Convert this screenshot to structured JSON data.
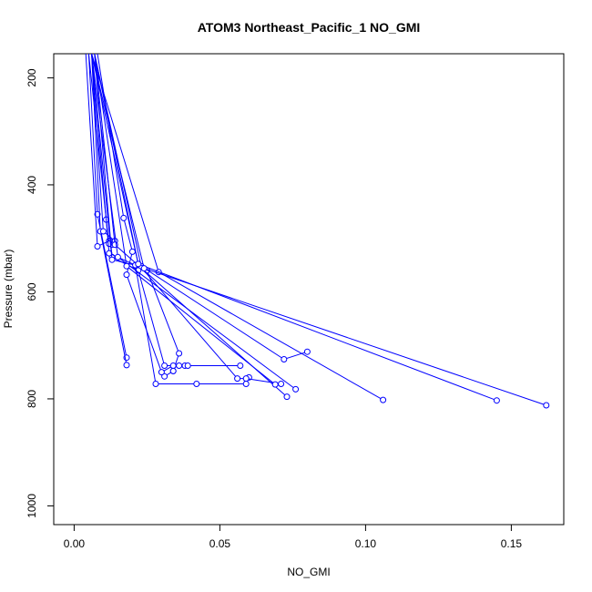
{
  "chart_data": {
    "type": "line",
    "title": "ATOM3 Northeast_Pacific_1 NO_GMI",
    "xlabel": "NO_GMI",
    "ylabel": "Pressure (mbar)",
    "xlim": [
      -0.007,
      0.168
    ],
    "ylim": [
      1035,
      155
    ],
    "y_reversed": true,
    "x_ticks": [
      0.0,
      0.05,
      0.1,
      0.15
    ],
    "x_tick_labels": [
      "0.00",
      "0.05",
      "0.10",
      "0.15"
    ],
    "y_ticks": [
      200,
      400,
      600,
      800,
      1000
    ],
    "y_tick_labels": [
      "200",
      "400",
      "600",
      "800",
      "1000"
    ],
    "grid": false,
    "legend": "none",
    "series_color": "#0000ff",
    "series": [
      {
        "x": [
          0.005,
          0.008,
          0.018
        ],
        "y": [
          155,
          455,
          723
        ]
      },
      {
        "x": [
          0.006,
          0.009,
          0.018
        ],
        "y": [
          155,
          487,
          737
        ]
      },
      {
        "x": [
          0.004,
          0.008,
          0.012
        ],
        "y": [
          155,
          515,
          505
        ]
      },
      {
        "x": [
          0.006,
          0.01,
          0.014,
          0.013
        ],
        "y": [
          155,
          487,
          505,
          512
        ]
      },
      {
        "x": [
          0.005,
          0.011,
          0.012
        ],
        "y": [
          155,
          465,
          510
        ]
      },
      {
        "x": [
          0.007,
          0.013,
          0.022,
          0.031,
          0.036,
          0.038,
          0.039,
          0.057
        ],
        "y": [
          155,
          535,
          560,
          738,
          738,
          738,
          738,
          738
        ]
      },
      {
        "x": [
          0.006,
          0.012,
          0.025,
          0.036,
          0.034,
          0.031
        ],
        "y": [
          155,
          528,
          560,
          715,
          748,
          758
        ]
      },
      {
        "x": [
          0.008,
          0.017,
          0.02,
          0.018,
          0.03,
          0.034,
          0.034
        ],
        "y": [
          155,
          462,
          525,
          568,
          750,
          738,
          748
        ]
      },
      {
        "x": [
          0.006,
          0.013,
          0.021,
          0.028,
          0.042,
          0.059,
          0.06
        ],
        "y": [
          155,
          540,
          550,
          772,
          772,
          772,
          760
        ]
      },
      {
        "x": [
          0.006,
          0.022,
          0.056,
          0.059,
          0.071
        ],
        "y": [
          155,
          548,
          762,
          762,
          772
        ]
      },
      {
        "x": [
          0.007,
          0.014,
          0.073
        ],
        "y": [
          155,
          512,
          796
        ]
      },
      {
        "x": [
          0.006,
          0.015,
          0.076
        ],
        "y": [
          155,
          535,
          782
        ]
      },
      {
        "x": [
          0.007,
          0.018,
          0.069
        ],
        "y": [
          155,
          552,
          773
        ]
      },
      {
        "x": [
          0.006,
          0.029,
          0.106
        ],
        "y": [
          155,
          563,
          802
        ]
      },
      {
        "x": [
          0.007,
          0.023,
          0.072,
          0.08
        ],
        "y": [
          155,
          552,
          726,
          712
        ]
      },
      {
        "x": [
          0.007,
          0.022,
          0.145
        ],
        "y": [
          155,
          548,
          803
        ]
      },
      {
        "x": [
          0.006,
          0.024,
          0.162
        ],
        "y": [
          155,
          556,
          812
        ]
      }
    ]
  }
}
